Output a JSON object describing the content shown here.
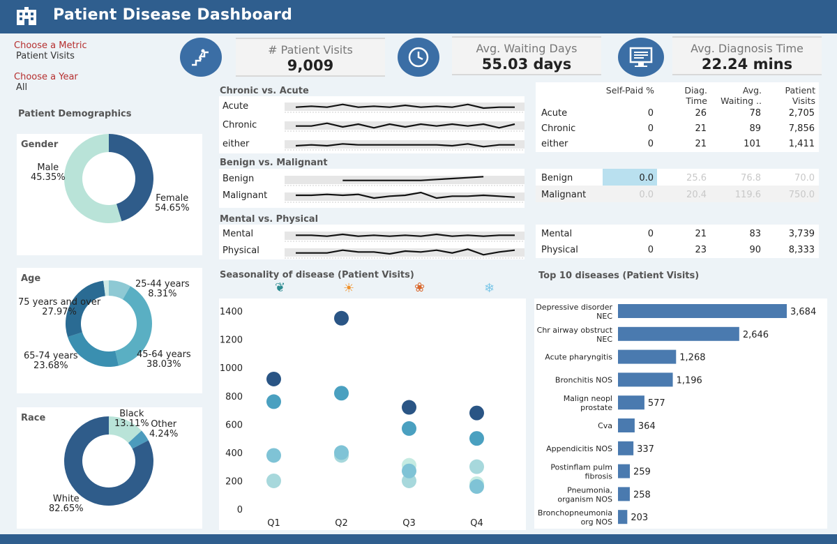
{
  "header": {
    "title": "Patient Disease Dashboard",
    "logo_icon": "hospital-icon"
  },
  "filters": {
    "metric_label": "Choose a Metric",
    "metric_value": "Patient Visits",
    "year_label": "Choose a Year",
    "year_value": "All"
  },
  "kpis": [
    {
      "label": "# Patient Visits",
      "value": "9,009",
      "icon": "stairs-icon"
    },
    {
      "label": "Avg. Waiting Days",
      "value": "55.03 days",
      "icon": "clock-icon"
    },
    {
      "label": "Avg. Diagnosis Time",
      "value": "22.24 mins",
      "icon": "monitor-icon"
    }
  ],
  "demographics": {
    "title": "Patient Demographics",
    "gender": {
      "title": "Gender",
      "slices": [
        {
          "label": "Male",
          "pct": "45.35%",
          "value": 45.35,
          "color": "#2f5c8a"
        },
        {
          "label": "Female",
          "pct": "54.65%",
          "value": 54.65,
          "color": "#b9e3d8"
        }
      ]
    },
    "age": {
      "title": "Age",
      "slices": [
        {
          "label": "25-44 years",
          "pct": "8.31%",
          "value": 8.31,
          "color": "#8ec9d4"
        },
        {
          "label": "45-64 years",
          "pct": "38.03%",
          "value": 38.03,
          "color": "#5aafc3"
        },
        {
          "label": "65-74 years",
          "pct": "23.68%",
          "value": 23.68,
          "color": "#3a8fb0"
        },
        {
          "label": "75 years and over",
          "pct": "27.97%",
          "value": 27.97,
          "color": "#2a6b93"
        },
        {
          "label": "",
          "pct": "",
          "value": 2.01,
          "color": "#cfeae6"
        }
      ]
    },
    "race": {
      "title": "Race",
      "slices": [
        {
          "label": "Black",
          "pct": "13.11%",
          "value": 13.11,
          "color": "#b9e3d8"
        },
        {
          "label": "Other",
          "pct": "4.24%",
          "value": 4.24,
          "color": "#4c9bbd"
        },
        {
          "label": "White",
          "pct": "82.65%",
          "value": 82.65,
          "color": "#2f5c8a"
        }
      ]
    }
  },
  "sparklines": {
    "chronic_acute": {
      "title": "Chronic vs. Acute",
      "rows": [
        {
          "label": "Acute",
          "points": [
            4,
            5,
            4,
            7,
            4,
            5,
            4,
            6,
            4,
            5,
            4,
            7,
            3,
            4,
            4
          ]
        },
        {
          "label": "Chronic",
          "points": [
            4,
            4,
            7,
            3,
            6,
            2,
            6,
            3,
            6,
            4,
            6,
            4,
            6,
            2,
            6
          ]
        },
        {
          "label": "either",
          "points": [
            3,
            4,
            3,
            5,
            4,
            4,
            4,
            4,
            4,
            4,
            3,
            5,
            2,
            4,
            4
          ]
        }
      ]
    },
    "benign_malignant": {
      "title": "Benign vs. Malignant",
      "rows": [
        {
          "label": "Benign",
          "points": [
            null,
            null,
            null,
            4,
            4,
            4,
            4,
            4,
            4,
            5,
            6,
            7,
            8,
            null,
            null
          ]
        },
        {
          "label": "Malignant",
          "points": [
            6,
            6,
            7,
            6,
            7,
            3,
            5,
            6,
            9,
            3,
            5,
            5,
            6,
            5,
            4
          ]
        }
      ]
    },
    "mental_physical": {
      "title": "Mental vs. Physical",
      "rows": [
        {
          "label": "Mental",
          "points": [
            5,
            5,
            4,
            6,
            4,
            5,
            4,
            5,
            4,
            6,
            4,
            5,
            4,
            5,
            5
          ]
        },
        {
          "label": "Physical",
          "points": [
            4,
            4,
            4,
            7,
            5,
            5,
            3,
            6,
            5,
            7,
            4,
            8,
            2,
            5,
            7
          ]
        }
      ]
    }
  },
  "table": {
    "headers": [
      "Self-Paid %",
      "Diag. Time",
      "Avg. Waiting ..",
      "Patient Visits"
    ],
    "group1": [
      {
        "name": "Acute",
        "values": [
          "0",
          "26",
          "78",
          "2,705"
        ]
      },
      {
        "name": "Chronic",
        "values": [
          "0",
          "21",
          "89",
          "7,856"
        ]
      },
      {
        "name": "either",
        "values": [
          "0",
          "21",
          "101",
          "1,411"
        ]
      }
    ],
    "group2": [
      {
        "name": "Benign",
        "values": [
          "0.0",
          "25.6",
          "76.8",
          "70.0"
        ]
      },
      {
        "name": "Malignant",
        "values": [
          "0.0",
          "20.4",
          "119.6",
          "750.0"
        ]
      }
    ],
    "group3": [
      {
        "name": "Mental",
        "values": [
          "0",
          "21",
          "83",
          "3,739"
        ]
      },
      {
        "name": "Physical",
        "values": [
          "0",
          "23",
          "90",
          "8,333"
        ]
      }
    ]
  },
  "chart_data": [
    {
      "type": "scatter",
      "title": "Seasonality of disease (Patient Visits)",
      "categories": [
        "Q1",
        "Q2",
        "Q3",
        "Q4"
      ],
      "season_icons": [
        "leaf-icon",
        "sun-icon",
        "maple-leaf-icon",
        "snowflake-icon"
      ],
      "ylim": [
        0,
        1450
      ],
      "yticks": [
        "0",
        "200",
        "400",
        "600",
        "800",
        "1000",
        "1200",
        "1400"
      ],
      "series": [
        {
          "values": [
            920,
            1350,
            720,
            680
          ],
          "color": "#2a5585"
        },
        {
          "values": [
            760,
            820,
            570,
            500
          ],
          "color": "#4aa0c0"
        },
        {
          "values": [
            380,
            400,
            270,
            160
          ],
          "color": "#7fc3d6"
        },
        {
          "values": [
            200,
            380,
            200,
            300
          ],
          "color": "#a7d8dc"
        },
        {
          "values": [
            null,
            null,
            310,
            180
          ],
          "color": "#c5ebe2"
        }
      ]
    },
    {
      "type": "bar",
      "title": "Top 10 diseases (Patient Visits)",
      "categories": [
        [
          "Depressive disorder",
          "NEC"
        ],
        [
          "Chr airway obstruct",
          "NEC"
        ],
        [
          "Acute pharyngitis"
        ],
        [
          "Bronchitis NOS"
        ],
        [
          "Malign neopl",
          "prostate"
        ],
        [
          "Cva"
        ],
        [
          "Appendicitis NOS"
        ],
        [
          "Postinflam pulm",
          "fibrosis"
        ],
        [
          "Pneumonia,",
          "organism NOS"
        ],
        [
          "Bronchopneumonia",
          "org NOS"
        ]
      ],
      "values": [
        3684,
        2646,
        1268,
        1196,
        577,
        364,
        337,
        259,
        258,
        203
      ],
      "labels": [
        "3,684",
        "2,646",
        "1,268",
        "1,196",
        "577",
        "364",
        "337",
        "259",
        "258",
        "203"
      ],
      "color": "#4a7aaf"
    }
  ]
}
